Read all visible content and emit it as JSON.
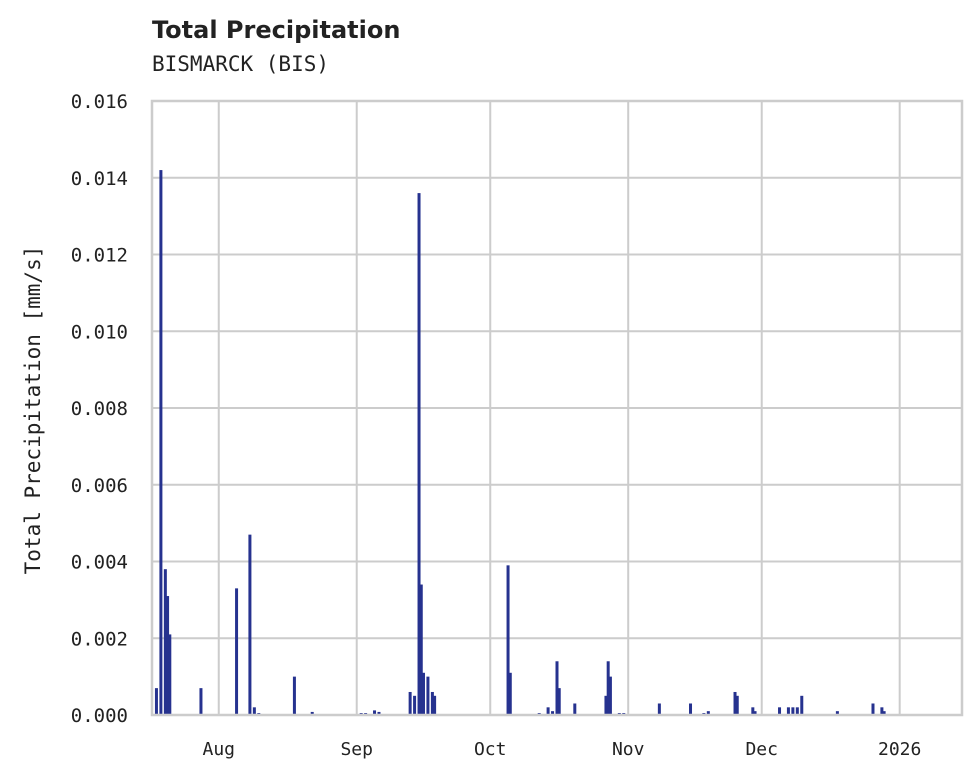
{
  "header": {
    "title": "Total Precipitation",
    "subtitle": "BISMARCK (BIS)"
  },
  "colors": {
    "series": "#26328f",
    "grid": "#cccccc",
    "text": "#222222"
  },
  "chart_data": {
    "type": "bar",
    "title": "Total Precipitation",
    "subtitle": "BISMARCK (BIS)",
    "xlabel": "",
    "ylabel": "Total Precipitation [mm/s]",
    "ylim": [
      0,
      0.016
    ],
    "xlim": [
      "2025-07-17",
      "2026-01-15"
    ],
    "grid": true,
    "legend": null,
    "yticks": [
      "0.000",
      "0.002",
      "0.004",
      "0.006",
      "0.008",
      "0.010",
      "0.012",
      "0.014",
      "0.016"
    ],
    "xticks": [
      {
        "label": "Aug",
        "date": "2025-08-01"
      },
      {
        "label": "Sep",
        "date": "2025-09-01"
      },
      {
        "label": "Oct",
        "date": "2025-10-01"
      },
      {
        "label": "Nov",
        "date": "2025-11-01"
      },
      {
        "label": "Dec",
        "date": "2025-12-01"
      },
      {
        "label": "2026",
        "date": "2026-01-01"
      }
    ],
    "series": [
      {
        "name": "Total Precipitation",
        "points": [
          {
            "x": "2025-07-18",
            "y": 0.0007
          },
          {
            "x": "2025-07-19",
            "y": 0.0142
          },
          {
            "x": "2025-07-20",
            "y": 0.0038
          },
          {
            "x": "2025-07-20.5",
            "y": 0.0031
          },
          {
            "x": "2025-07-21",
            "y": 0.0021
          },
          {
            "x": "2025-07-28",
            "y": 0.0007
          },
          {
            "x": "2025-08-05",
            "y": 0.0033
          },
          {
            "x": "2025-08-08",
            "y": 0.0047
          },
          {
            "x": "2025-08-09",
            "y": 0.0002
          },
          {
            "x": "2025-08-10",
            "y": 5e-05
          },
          {
            "x": "2025-08-18",
            "y": 0.001
          },
          {
            "x": "2025-08-22",
            "y": 8e-05
          },
          {
            "x": "2025-09-02",
            "y": 5e-05
          },
          {
            "x": "2025-09-03",
            "y": 5e-05
          },
          {
            "x": "2025-09-05",
            "y": 0.00012
          },
          {
            "x": "2025-09-06",
            "y": 8e-05
          },
          {
            "x": "2025-09-13",
            "y": 0.0006
          },
          {
            "x": "2025-09-14",
            "y": 0.0005
          },
          {
            "x": "2025-09-15",
            "y": 0.0136
          },
          {
            "x": "2025-09-15.5",
            "y": 0.0034
          },
          {
            "x": "2025-09-16",
            "y": 0.0011
          },
          {
            "x": "2025-09-17",
            "y": 0.001
          },
          {
            "x": "2025-09-18",
            "y": 0.0006
          },
          {
            "x": "2025-09-18.5",
            "y": 0.0005
          },
          {
            "x": "2025-10-05",
            "y": 0.0039
          },
          {
            "x": "2025-10-05.5",
            "y": 0.0011
          },
          {
            "x": "2025-10-12",
            "y": 5e-05
          },
          {
            "x": "2025-10-14",
            "y": 0.0002
          },
          {
            "x": "2025-10-15",
            "y": 0.0001
          },
          {
            "x": "2025-10-16",
            "y": 0.0014
          },
          {
            "x": "2025-10-16.5",
            "y": 0.0007
          },
          {
            "x": "2025-10-20",
            "y": 0.0003
          },
          {
            "x": "2025-10-27",
            "y": 0.0005
          },
          {
            "x": "2025-10-27.5",
            "y": 0.0014
          },
          {
            "x": "2025-10-28",
            "y": 0.001
          },
          {
            "x": "2025-10-30",
            "y": 5e-05
          },
          {
            "x": "2025-10-31",
            "y": 5e-05
          },
          {
            "x": "2025-11-08",
            "y": 0.0003
          },
          {
            "x": "2025-11-15",
            "y": 0.0003
          },
          {
            "x": "2025-11-18",
            "y": 5e-05
          },
          {
            "x": "2025-11-19",
            "y": 0.0001
          },
          {
            "x": "2025-11-25",
            "y": 0.0006
          },
          {
            "x": "2025-11-25.5",
            "y": 0.0005
          },
          {
            "x": "2025-11-29",
            "y": 0.0002
          },
          {
            "x": "2025-11-29.5",
            "y": 0.0001
          },
          {
            "x": "2025-12-05",
            "y": 0.0002
          },
          {
            "x": "2025-12-07",
            "y": 0.0002
          },
          {
            "x": "2025-12-08",
            "y": 0.0002
          },
          {
            "x": "2025-12-09",
            "y": 0.0002
          },
          {
            "x": "2025-12-10",
            "y": 0.0005
          },
          {
            "x": "2025-12-18",
            "y": 0.0001
          },
          {
            "x": "2025-12-26",
            "y": 0.0003
          },
          {
            "x": "2025-12-28",
            "y": 0.0002
          },
          {
            "x": "2025-12-28.5",
            "y": 0.0001
          }
        ]
      }
    ]
  }
}
